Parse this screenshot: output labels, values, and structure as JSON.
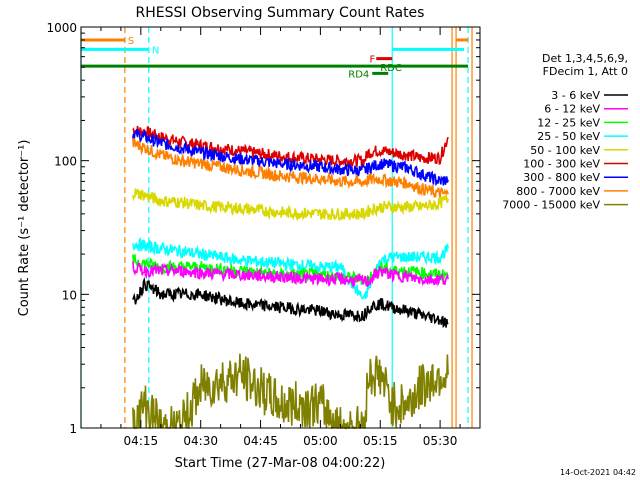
{
  "chart_data": {
    "type": "line",
    "title": "RHESSI Observing Summary Count Rates",
    "xlabel": "Start Time (27-Mar-08 04:00:22)",
    "ylabel": "Count Rate (s⁻¹ detector⁻¹)",
    "ylim": [
      1,
      1000
    ],
    "yscale": "log",
    "xlim_minutes": [
      0,
      100
    ],
    "x_ticks": [
      {
        "label": "04:15",
        "value": 15
      },
      {
        "label": "04:30",
        "value": 30
      },
      {
        "label": "04:45",
        "value": 45
      },
      {
        "label": "05:00",
        "value": 60
      },
      {
        "label": "05:15",
        "value": 75
      },
      {
        "label": "05:30",
        "value": 90
      }
    ],
    "y_ticks": [
      {
        "label": "1",
        "value": 1
      },
      {
        "label": "10",
        "value": 10
      },
      {
        "label": "100",
        "value": 100
      },
      {
        "label": "1000",
        "value": 1000
      }
    ],
    "legend": {
      "header": [
        "Det 1,3,4,5,6,9,",
        "FDecim 1, Att 0"
      ],
      "placement": "right",
      "entries": [
        {
          "label": "3 - 6 keV",
          "color": "#000000"
        },
        {
          "label": "6 - 12 keV",
          "color": "#ff00ff"
        },
        {
          "label": "12 - 25 keV",
          "color": "#00ff00"
        },
        {
          "label": "25 - 50 keV",
          "color": "#00ffff"
        },
        {
          "label": "50 - 100 keV",
          "color": "#d8d800"
        },
        {
          "label": "100 - 300 keV",
          "color": "#dd0000"
        },
        {
          "label": "300 - 800 keV",
          "color": "#0000ff"
        },
        {
          "label": "800 - 7000 keV",
          "color": "#ff8000"
        },
        {
          "label": "7000 - 15000 keV",
          "color": "#808000"
        }
      ]
    },
    "flags": [
      {
        "label": "S",
        "color": "#ff8000",
        "x": [
          0,
          11
        ],
        "y": 800
      },
      {
        "label": "N",
        "color": "#00ffff",
        "x": [
          0,
          17
        ],
        "y": 680
      },
      {
        "label": "",
        "color": "#00ffff",
        "x": [
          78,
          96
        ],
        "y": 680
      },
      {
        "label": "",
        "color": "#ff8000",
        "x": [
          94,
          97
        ],
        "y": 800
      },
      {
        "label": "F",
        "color": "#dd0000",
        "x": [
          74,
          78
        ],
        "y": 580
      },
      {
        "label": "RDC",
        "color": "#008000",
        "x": [
          0,
          97
        ],
        "y": 510
      },
      {
        "label": "RD4",
        "color": "#008000",
        "x": [
          73,
          77
        ],
        "y": 450
      }
    ],
    "vlines": [
      {
        "x": 0,
        "color": "#00ffff",
        "style": "solid"
      },
      {
        "x": 11,
        "color": "#ff8000",
        "style": "dashed"
      },
      {
        "x": 17,
        "color": "#00ffff",
        "style": "dashed"
      },
      {
        "x": 78,
        "color": "#00ffff",
        "style": "solid"
      },
      {
        "x": 93,
        "color": "#ff8000",
        "style": "solid"
      },
      {
        "x": 94,
        "color": "#ff8000",
        "style": "solid"
      },
      {
        "x": 97,
        "color": "#00ffff",
        "style": "dashed"
      },
      {
        "x": 98,
        "color": "#ff8000",
        "style": "solid"
      }
    ],
    "series": [
      {
        "name": "100 - 300 keV",
        "color": "#dd0000",
        "x": [
          13,
          16,
          20,
          25,
          30,
          40,
          50,
          60,
          65,
          71,
          72,
          75,
          78,
          82,
          85,
          90,
          92
        ],
        "y": [
          170,
          165,
          150,
          138,
          130,
          118,
          108,
          102,
          100,
          100,
          115,
          120,
          115,
          110,
          105,
          105,
          150
        ]
      },
      {
        "name": "300 - 800 keV",
        "color": "#0000ff",
        "x": [
          13,
          16,
          20,
          25,
          30,
          40,
          50,
          60,
          65,
          71,
          72,
          75,
          78,
          82,
          85,
          90,
          92
        ],
        "y": [
          160,
          150,
          135,
          125,
          115,
          103,
          95,
          90,
          86,
          84,
          88,
          95,
          92,
          88,
          80,
          70,
          72
        ]
      },
      {
        "name": "800 - 7000 keV",
        "color": "#ff8000",
        "x": [
          13,
          16,
          20,
          25,
          30,
          40,
          50,
          60,
          65,
          71,
          72,
          75,
          78,
          82,
          85,
          90,
          92
        ],
        "y": [
          135,
          125,
          110,
          100,
          95,
          85,
          77,
          73,
          70,
          69,
          72,
          73,
          70,
          68,
          62,
          57,
          56
        ]
      },
      {
        "name": "50 - 100 keV",
        "color": "#d8d800",
        "x": [
          13,
          16,
          20,
          25,
          30,
          40,
          50,
          60,
          65,
          71,
          72,
          75,
          78,
          82,
          85,
          90,
          92
        ],
        "y": [
          58,
          55,
          50,
          49,
          46,
          44,
          41,
          40,
          40,
          40,
          42,
          45,
          45,
          45,
          45,
          48,
          52
        ]
      },
      {
        "name": "25 - 50 keV",
        "color": "#00ffff",
        "x": [
          13,
          16,
          20,
          25,
          30,
          40,
          50,
          60,
          65,
          71,
          72,
          75,
          78,
          82,
          85,
          90,
          92
        ],
        "y": [
          24,
          23,
          22,
          21,
          20,
          18,
          17,
          16,
          16,
          9,
          11,
          18,
          19,
          19,
          19,
          19,
          22
        ]
      },
      {
        "name": "12 - 25 keV",
        "color": "#00ff00",
        "x": [
          13,
          16,
          20,
          25,
          30,
          40,
          50,
          60,
          65,
          71,
          72,
          75,
          78,
          82,
          85,
          90,
          92
        ],
        "y": [
          18,
          17,
          16,
          16,
          16,
          15,
          14,
          14,
          13.5,
          13,
          13,
          16,
          15,
          15,
          14.5,
          14,
          14
        ]
      },
      {
        "name": "6 - 12 keV",
        "color": "#ff00ff",
        "x": [
          13,
          16,
          20,
          25,
          30,
          40,
          50,
          60,
          65,
          71,
          72,
          75,
          78,
          82,
          85,
          90,
          92
        ],
        "y": [
          16,
          15,
          15,
          15,
          14.5,
          14,
          13.5,
          13,
          13,
          12.5,
          12.5,
          15,
          14,
          13.5,
          13,
          13,
          13
        ]
      },
      {
        "name": "3 - 6 keV",
        "color": "#000000",
        "x": [
          13,
          16,
          20,
          25,
          30,
          40,
          50,
          60,
          65,
          71,
          72,
          75,
          78,
          82,
          85,
          90,
          92
        ],
        "y": [
          8.5,
          12,
          10,
          10,
          10,
          8.5,
          8,
          7.5,
          7,
          7,
          8,
          8.5,
          8,
          7.5,
          7,
          6.5,
          6
        ]
      },
      {
        "name": "7000 - 15000 keV",
        "color": "#808000",
        "x": [
          13,
          16,
          20,
          25,
          30,
          40,
          50,
          60,
          65,
          71,
          72,
          75,
          78,
          82,
          85,
          90,
          92
        ],
        "y": [
          1,
          1.5,
          1,
          1,
          2,
          2.5,
          1.5,
          1.5,
          1,
          1,
          2.5,
          2.5,
          1.5,
          1.5,
          2,
          2.5,
          2.5
        ]
      }
    ]
  },
  "footer": {
    "timestamp": "14-Oct-2021 04:42"
  }
}
